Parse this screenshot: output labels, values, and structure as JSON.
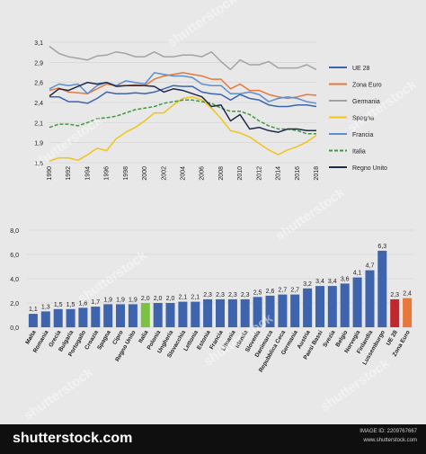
{
  "chart_data": [
    {
      "type": "line",
      "x": [
        1990,
        1991,
        1992,
        1993,
        1994,
        1995,
        1996,
        1997,
        1998,
        1999,
        2000,
        2001,
        2002,
        2003,
        2004,
        2005,
        2006,
        2007,
        2008,
        2009,
        2010,
        2011,
        2012,
        2013,
        2014,
        2015,
        2016,
        2017,
        2018
      ],
      "x_ticks": [
        "1990",
        "1992",
        "1994",
        "1996",
        "1998",
        "2000",
        "2002",
        "2004",
        "2006",
        "2008",
        "2010",
        "2012",
        "2014",
        "2016",
        "2018"
      ],
      "y_ticks": [
        "1,6",
        "1,9",
        "2,1",
        "2,4",
        "2,6",
        "2,9",
        "3,1"
      ],
      "ylim": [
        1.6,
        3.1
      ],
      "grid": "horizontal",
      "legend_position": "right",
      "series": [
        {
          "name": "UE 28",
          "color": "#3d64ad",
          "dash": "solid",
          "values": [
            2.42,
            2.42,
            2.36,
            2.36,
            2.34,
            2.4,
            2.48,
            2.46,
            2.46,
            2.47,
            2.46,
            2.48,
            2.52,
            2.56,
            2.55,
            2.55,
            2.48,
            2.46,
            2.45,
            2.38,
            2.45,
            2.4,
            2.38,
            2.32,
            2.3,
            2.3,
            2.32,
            2.32,
            2.3
          ]
        },
        {
          "name": "Zona Euro",
          "color": "#e8783a",
          "dash": "solid",
          "values": [
            2.5,
            2.53,
            2.48,
            2.47,
            2.46,
            2.52,
            2.58,
            2.56,
            2.56,
            2.57,
            2.56,
            2.64,
            2.68,
            2.7,
            2.72,
            2.7,
            2.68,
            2.64,
            2.64,
            2.52,
            2.58,
            2.5,
            2.5,
            2.45,
            2.42,
            2.4,
            2.42,
            2.45,
            2.44
          ]
        },
        {
          "name": "Germania",
          "color": "#a3a3a3",
          "dash": "solid",
          "values": [
            3.05,
            2.96,
            2.92,
            2.9,
            2.88,
            2.93,
            2.94,
            2.98,
            2.96,
            2.92,
            2.92,
            2.98,
            2.92,
            2.92,
            2.94,
            2.94,
            2.92,
            2.98,
            2.86,
            2.76,
            2.88,
            2.82,
            2.82,
            2.86,
            2.78,
            2.78,
            2.78,
            2.82,
            2.76
          ]
        },
        {
          "name": "Spagna",
          "color": "#f0c419",
          "dash": "solid",
          "values": [
            1.62,
            1.66,
            1.66,
            1.63,
            1.7,
            1.78,
            1.75,
            1.9,
            1.98,
            2.04,
            2.12,
            2.22,
            2.22,
            2.32,
            2.4,
            2.42,
            2.38,
            2.28,
            2.15,
            2.0,
            1.97,
            1.92,
            1.84,
            1.76,
            1.7,
            1.76,
            1.8,
            1.86,
            1.94
          ]
        },
        {
          "name": "Francia",
          "color": "#5b8fcf",
          "dash": "solid",
          "values": [
            2.52,
            2.58,
            2.56,
            2.58,
            2.46,
            2.56,
            2.6,
            2.56,
            2.62,
            2.6,
            2.58,
            2.72,
            2.7,
            2.68,
            2.68,
            2.66,
            2.58,
            2.56,
            2.56,
            2.46,
            2.46,
            2.48,
            2.45,
            2.36,
            2.4,
            2.42,
            2.4,
            2.36,
            2.34
          ]
        },
        {
          "name": "Italia",
          "color": "#3e9a3e",
          "dash": "dashed",
          "values": [
            2.04,
            2.08,
            2.08,
            2.06,
            2.1,
            2.15,
            2.16,
            2.18,
            2.22,
            2.26,
            2.28,
            2.3,
            2.34,
            2.36,
            2.38,
            2.38,
            2.36,
            2.34,
            2.28,
            2.24,
            2.24,
            2.2,
            2.12,
            2.06,
            2.02,
            2.02,
            2.0,
            1.96,
            1.96
          ]
        },
        {
          "name": "Regno Unito",
          "color": "#1e2a4a",
          "dash": "solid",
          "values": [
            2.43,
            2.52,
            2.5,
            2.55,
            2.6,
            2.58,
            2.6,
            2.55,
            2.56,
            2.56,
            2.56,
            2.55,
            2.48,
            2.52,
            2.5,
            2.46,
            2.42,
            2.3,
            2.32,
            2.12,
            2.2,
            2.02,
            2.04,
            2.0,
            1.98,
            2.02,
            2.02,
            2.0,
            2.0
          ]
        }
      ]
    },
    {
      "type": "bar",
      "categories": [
        "Malta",
        "Romania",
        "Grecia",
        "Bulgaria",
        "Portogallo",
        "Croazia",
        "Spagna",
        "Cipro",
        "Regno Unito",
        "Italia",
        "Polonia",
        "Ungheria",
        "Slovacchia",
        "Lettonia",
        "Estonia",
        "Francia",
        "Lituania",
        "Irlanda",
        "Slovenia",
        "Danimarca",
        "Repubblica Ceca",
        "Germania",
        "Austria",
        "Paesi Bassi",
        "Svezia",
        "Belgio",
        "Norvegia",
        "Finlandia",
        "Lussemburgo",
        "UE 28",
        "Zona Euro"
      ],
      "values": [
        1.1,
        1.3,
        1.5,
        1.5,
        1.6,
        1.7,
        1.9,
        1.9,
        1.9,
        2.0,
        2.0,
        2.0,
        2.1,
        2.1,
        2.3,
        2.3,
        2.3,
        2.3,
        2.5,
        2.6,
        2.7,
        2.7,
        3.2,
        3.4,
        3.4,
        3.6,
        4.1,
        4.7,
        6.3,
        2.3,
        2.4
      ],
      "labels": [
        "1,1",
        "1,3",
        "1,5",
        "1,5",
        "1,6",
        "1,7",
        "1,9",
        "1,9",
        "1,9",
        "2,0",
        "2,0",
        "2,0",
        "2,1",
        "2,1",
        "2,3",
        "2,3",
        "2,3",
        "2,3",
        "2,5",
        "2,6",
        "2,7",
        "2,7",
        "3,2",
        "3,4",
        "3,4",
        "3,6",
        "4,1",
        "4,7",
        "6,3",
        "2,3",
        "2,4"
      ],
      "highlight_colors": {
        "Italia": "#7cc242",
        "UE 28": "#c0282d",
        "Zona Euro": "#e8783a"
      },
      "default_color": "#3d64ad",
      "y_ticks": [
        "0,0",
        "2,0",
        "4,0",
        "6,0",
        "8,0"
      ],
      "ylim": [
        0,
        8
      ],
      "grid": "horizontal"
    }
  ],
  "watermarks": [
    "shutterstock",
    "shutterstock",
    "shutterstock",
    "shutterstock",
    "shutterstock",
    "shutterstock",
    "shutterstock",
    "shutterstock"
  ],
  "footer": {
    "logo": "shutterstock.com",
    "image_id": "IMAGE ID: 2209767667",
    "site": "www.shutterstock.com"
  }
}
